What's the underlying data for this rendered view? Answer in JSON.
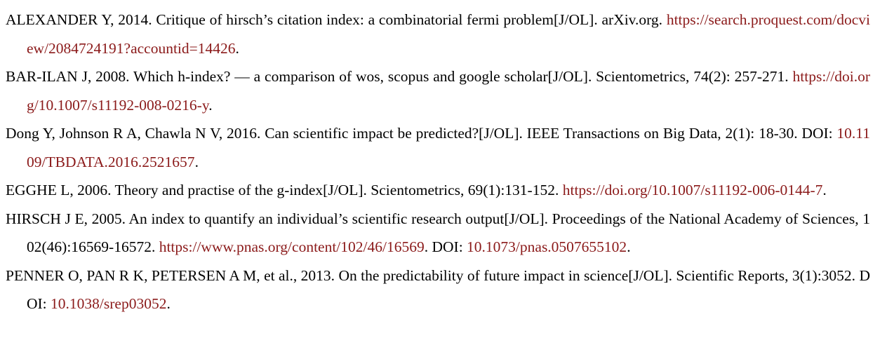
{
  "references": [
    {
      "text": "ALEXANDER Y, 2014. Critique of hirsch’s citation index: a combinatorial fermi problem[J/OL]. arXiv.org. ",
      "url": "https://search.proquest.com/docview/2084724191?accountid=14426",
      "after_url": ".",
      "doi_prefix": "",
      "doi": "",
      "after_doi": ""
    },
    {
      "text": "BAR-ILAN J, 2008. Which h-index? — a comparison of wos, scopus and google scholar[J/OL]. Scientometrics, 74(2): 257-271. ",
      "url": "https://doi.org/10.1007/s11192-008-0216-y",
      "after_url": ".",
      "doi_prefix": "",
      "doi": "",
      "after_doi": ""
    },
    {
      "text": "Dong Y, Johnson R A, Chawla N V, 2016. Can scientific impact be predicted?[J/OL]. IEEE Transactions on Big Data, 2(1): 18-30. ",
      "url": "",
      "after_url": "",
      "doi_prefix": "DOI: ",
      "doi": "10.1109/TBDATA.2016.2521657",
      "after_doi": "."
    },
    {
      "text": "EGGHE L, 2006. Theory and practise of the g-index[J/OL]. Scientometrics, 69(1):131-152. ",
      "url": "https://doi.org/10.1007/s11192-006-0144-7",
      "after_url": ".",
      "doi_prefix": "",
      "doi": "",
      "after_doi": ""
    },
    {
      "text": "HIRSCH J E, 2005. An index to quantify an individual’s scientific research output[J/OL]. Proceedings of the National Academy of Sciences, 102(46):16569-16572. ",
      "url": "https://www.pnas.org/content/102/46/16569",
      "after_url": ". ",
      "doi_prefix": "DOI: ",
      "doi": "10.1073/pnas.0507655102",
      "after_doi": "."
    },
    {
      "text": "PENNER O, PAN R K, PETERSEN A M, et al., 2013. On the predictability of future impact in science[J/OL]. Scientific Reports, 3(1):3052. ",
      "url": "",
      "after_url": "",
      "doi_prefix": "DOI: ",
      "doi": "10.1038/srep03052",
      "after_doi": "."
    }
  ],
  "colors": {
    "text": "#000000",
    "link": "#8b1a1a",
    "background": "#ffffff"
  }
}
